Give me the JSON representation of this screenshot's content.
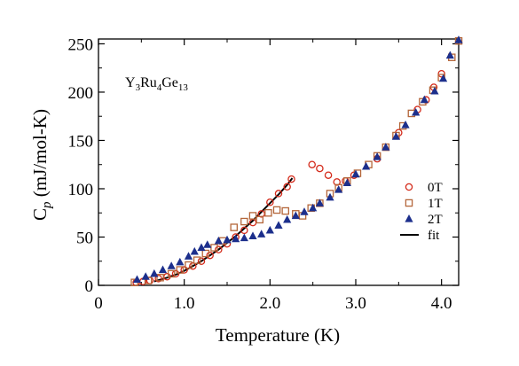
{
  "chart_data": {
    "type": "scatter",
    "sample": {
      "base": "Y",
      "s1": "3",
      "mid1": "Ru",
      "s2": "4",
      "mid2": "Ge",
      "s3": "13"
    },
    "ylabel": {
      "main": "C",
      "sub": "p",
      "rest": " (mJ/mol-K)"
    },
    "xlabel": "Temperature (K)",
    "xlim": [
      0,
      4.2
    ],
    "ylim": [
      0,
      255
    ],
    "x_ticks": [
      0,
      1.0,
      2.0,
      3.0,
      4.0
    ],
    "x_tick_labels": [
      "0",
      "1.0",
      "2.0",
      "3.0",
      "4.0"
    ],
    "y_ticks": [
      0,
      50,
      100,
      150,
      200,
      250
    ],
    "y_tick_labels": [
      "0",
      "50",
      "100",
      "150",
      "200",
      "250"
    ],
    "legend_position": "center-right",
    "series": [
      {
        "name": "0T",
        "marker": "circle",
        "color": "#d42a1a",
        "points": [
          [
            0.44,
            3
          ],
          [
            0.52,
            4
          ],
          [
            0.6,
            5
          ],
          [
            0.7,
            7
          ],
          [
            0.8,
            9
          ],
          [
            0.9,
            12
          ],
          [
            1.0,
            16
          ],
          [
            1.1,
            20
          ],
          [
            1.2,
            25
          ],
          [
            1.3,
            31
          ],
          [
            1.4,
            37
          ],
          [
            1.5,
            43
          ],
          [
            1.6,
            50
          ],
          [
            1.7,
            57
          ],
          [
            1.8,
            65
          ],
          [
            1.9,
            74
          ],
          [
            2.0,
            86
          ],
          [
            2.1,
            95
          ],
          [
            2.2,
            102
          ],
          [
            2.25,
            110
          ],
          [
            2.49,
            125
          ],
          [
            2.58,
            121
          ],
          [
            2.68,
            114
          ],
          [
            2.78,
            107
          ],
          [
            2.88,
            108
          ],
          [
            2.98,
            114
          ],
          [
            3.25,
            131
          ],
          [
            3.5,
            158
          ],
          [
            3.72,
            182
          ],
          [
            3.82,
            192
          ],
          [
            3.91,
            205
          ],
          [
            4.0,
            219
          ]
        ]
      },
      {
        "name": "1T",
        "marker": "square",
        "color": "#b4663a",
        "points": [
          [
            0.42,
            3
          ],
          [
            0.58,
            5
          ],
          [
            0.72,
            8
          ],
          [
            0.85,
            12
          ],
          [
            0.95,
            16
          ],
          [
            1.05,
            21
          ],
          [
            1.15,
            26
          ],
          [
            1.25,
            33
          ],
          [
            1.35,
            39
          ],
          [
            1.45,
            46
          ],
          [
            1.58,
            60
          ],
          [
            1.7,
            66
          ],
          [
            1.8,
            72
          ],
          [
            1.88,
            68
          ],
          [
            1.98,
            75
          ],
          [
            2.08,
            78
          ],
          [
            2.18,
            77
          ],
          [
            2.3,
            74
          ],
          [
            2.38,
            72
          ],
          [
            2.48,
            80
          ],
          [
            2.58,
            85
          ],
          [
            2.7,
            95
          ],
          [
            2.8,
            101
          ],
          [
            2.9,
            108
          ],
          [
            3.02,
            116
          ],
          [
            3.15,
            125
          ],
          [
            3.25,
            134
          ],
          [
            3.35,
            143
          ],
          [
            3.47,
            155
          ],
          [
            3.55,
            165
          ],
          [
            3.65,
            178
          ],
          [
            3.78,
            190
          ],
          [
            3.9,
            202
          ],
          [
            4.0,
            215
          ],
          [
            4.12,
            236
          ],
          [
            4.2,
            253
          ]
        ]
      },
      {
        "name": "2T",
        "marker": "triangle",
        "color": "#1c2f8c",
        "points": [
          [
            0.45,
            6
          ],
          [
            0.55,
            9
          ],
          [
            0.65,
            12
          ],
          [
            0.75,
            16
          ],
          [
            0.85,
            20
          ],
          [
            0.95,
            24
          ],
          [
            1.05,
            30
          ],
          [
            1.12,
            35
          ],
          [
            1.2,
            39
          ],
          [
            1.27,
            42
          ],
          [
            1.4,
            46
          ],
          [
            1.5,
            47
          ],
          [
            1.6,
            48
          ],
          [
            1.7,
            49
          ],
          [
            1.8,
            51
          ],
          [
            1.9,
            53
          ],
          [
            2.0,
            57
          ],
          [
            2.1,
            62
          ],
          [
            2.2,
            68
          ],
          [
            2.3,
            72
          ],
          [
            2.4,
            76
          ],
          [
            2.5,
            80
          ],
          [
            2.58,
            85
          ],
          [
            2.7,
            91
          ],
          [
            2.8,
            99
          ],
          [
            2.9,
            106
          ],
          [
            3.0,
            115
          ],
          [
            3.12,
            123
          ],
          [
            3.25,
            133
          ],
          [
            3.35,
            143
          ],
          [
            3.47,
            154
          ],
          [
            3.58,
            166
          ],
          [
            3.7,
            179
          ],
          [
            3.8,
            192
          ],
          [
            3.92,
            201
          ],
          [
            4.02,
            214
          ],
          [
            4.1,
            238
          ],
          [
            4.2,
            254
          ]
        ]
      }
    ],
    "fit": {
      "name": "fit",
      "points": [
        [
          0.65,
          4
        ],
        [
          0.8,
          8
        ],
        [
          0.9,
          11
        ],
        [
          1.0,
          15
        ],
        [
          1.1,
          20
        ],
        [
          1.2,
          25
        ],
        [
          1.3,
          31
        ],
        [
          1.4,
          37
        ],
        [
          1.5,
          44
        ],
        [
          1.6,
          51
        ],
        [
          1.7,
          59
        ],
        [
          1.8,
          67
        ],
        [
          1.9,
          76
        ],
        [
          2.0,
          85
        ],
        [
          2.1,
          94
        ],
        [
          2.2,
          104
        ],
        [
          2.26,
          111
        ]
      ]
    }
  }
}
